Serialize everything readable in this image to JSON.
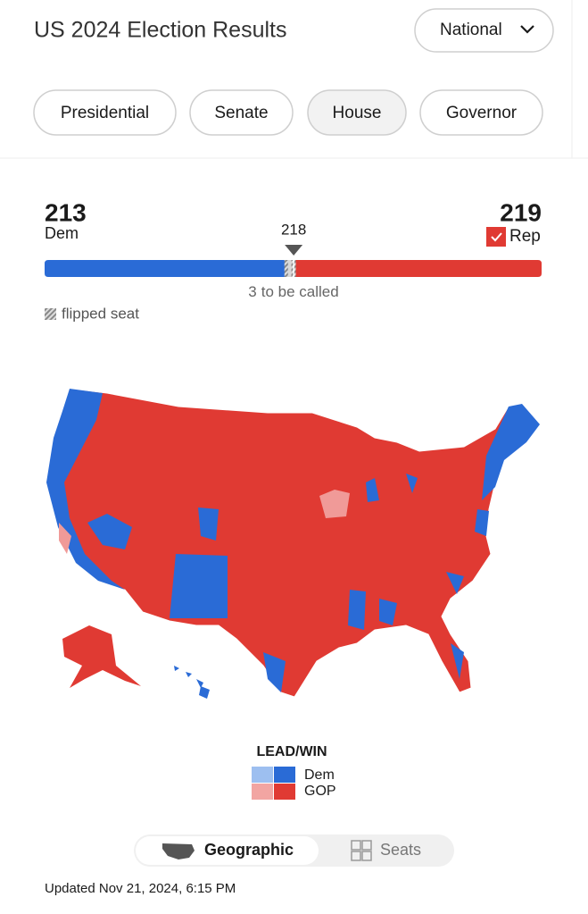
{
  "header": {
    "title": "US 2024 Election Results",
    "dropdown": "National"
  },
  "tabs": [
    "Presidential",
    "Senate",
    "House",
    "Governor"
  ],
  "tally": {
    "dem_seats": 213,
    "dem_label": "Dem",
    "rep_seats": 219,
    "rep_label": "Rep",
    "majority": 218,
    "to_be_called": 3,
    "to_be_called_text": "to be called",
    "flipped_legend": "flipped seat"
  },
  "legend": {
    "title": "LEAD/WIN",
    "dem": "Dem",
    "gop": "GOP"
  },
  "view_toggle": [
    "Geographic",
    "Seats"
  ],
  "footer": "Updated Nov 21, 2024, 6:15 PM"
}
